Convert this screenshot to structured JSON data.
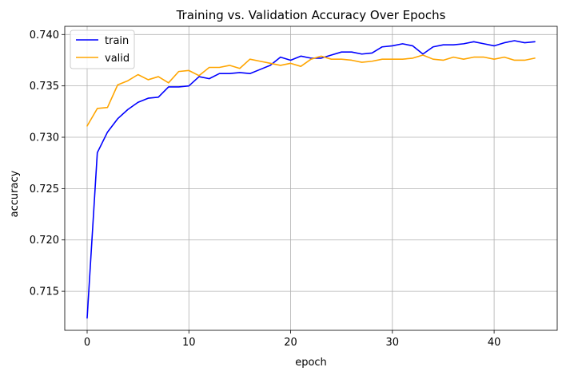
{
  "chart_data": {
    "type": "line",
    "title": "Training vs. Validation Accuracy Over Epochs",
    "xlabel": "epoch",
    "ylabel": "accuracy",
    "xlim": [
      -2.2,
      46.2
    ],
    "ylim": [
      0.7112,
      0.7408
    ],
    "xticks": [
      0,
      10,
      20,
      30,
      40
    ],
    "yticks": [
      0.715,
      0.72,
      0.725,
      0.73,
      0.735,
      0.74
    ],
    "grid": true,
    "legend_position": "top-left",
    "x": [
      0,
      1,
      2,
      3,
      4,
      5,
      6,
      7,
      8,
      9,
      10,
      11,
      12,
      13,
      14,
      15,
      16,
      17,
      18,
      19,
      20,
      21,
      22,
      23,
      24,
      25,
      26,
      27,
      28,
      29,
      30,
      31,
      32,
      33,
      34,
      35,
      36,
      37,
      38,
      39,
      40,
      41,
      42,
      43,
      44
    ],
    "series": [
      {
        "name": "train",
        "color": "#0000ff",
        "values": [
          0.7124,
          0.7285,
          0.7305,
          0.7318,
          0.7327,
          0.7334,
          0.7338,
          0.7339,
          0.7349,
          0.7349,
          0.735,
          0.7359,
          0.7357,
          0.7362,
          0.7362,
          0.7363,
          0.7362,
          0.7366,
          0.737,
          0.7378,
          0.7375,
          0.7379,
          0.7377,
          0.7377,
          0.738,
          0.7383,
          0.7383,
          0.7381,
          0.7382,
          0.7388,
          0.7389,
          0.7391,
          0.7389,
          0.7381,
          0.7388,
          0.739,
          0.739,
          0.7391,
          0.7393,
          0.7391,
          0.7389,
          0.7392,
          0.7394,
          0.7392,
          0.7393
        ]
      },
      {
        "name": "valid",
        "color": "#ffa500",
        "values": [
          0.7311,
          0.7328,
          0.7329,
          0.7351,
          0.7355,
          0.7361,
          0.7356,
          0.7359,
          0.7353,
          0.7364,
          0.7365,
          0.736,
          0.7368,
          0.7368,
          0.737,
          0.7367,
          0.7376,
          0.7374,
          0.7372,
          0.737,
          0.7372,
          0.7369,
          0.7376,
          0.7379,
          0.7376,
          0.7376,
          0.7375,
          0.7373,
          0.7374,
          0.7376,
          0.7376,
          0.7376,
          0.7377,
          0.738,
          0.7376,
          0.7375,
          0.7378,
          0.7376,
          0.7378,
          0.7378,
          0.7376,
          0.7378,
          0.7375,
          0.7375,
          0.7377
        ]
      }
    ]
  }
}
